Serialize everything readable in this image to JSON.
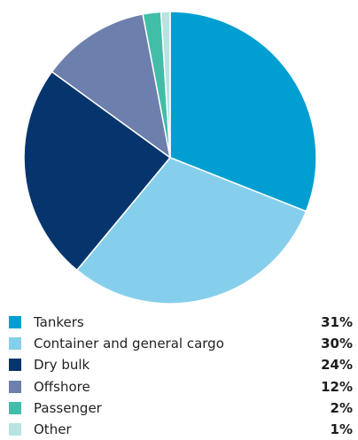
{
  "chart_data": {
    "type": "pie",
    "title": "",
    "categories": [
      "Tankers",
      "Container and general cargo",
      "Dry bulk",
      "Offshore",
      "Passenger",
      "Other"
    ],
    "values": [
      31,
      30,
      24,
      12,
      2,
      1
    ],
    "value_labels": [
      "31%",
      "30%",
      "24%",
      "12%",
      "2%",
      "1%"
    ],
    "colors": [
      "#019ed1",
      "#86cfec",
      "#06356e",
      "#6d7fac",
      "#41bda8",
      "#b8e3df"
    ],
    "legend_position": "bottom"
  }
}
